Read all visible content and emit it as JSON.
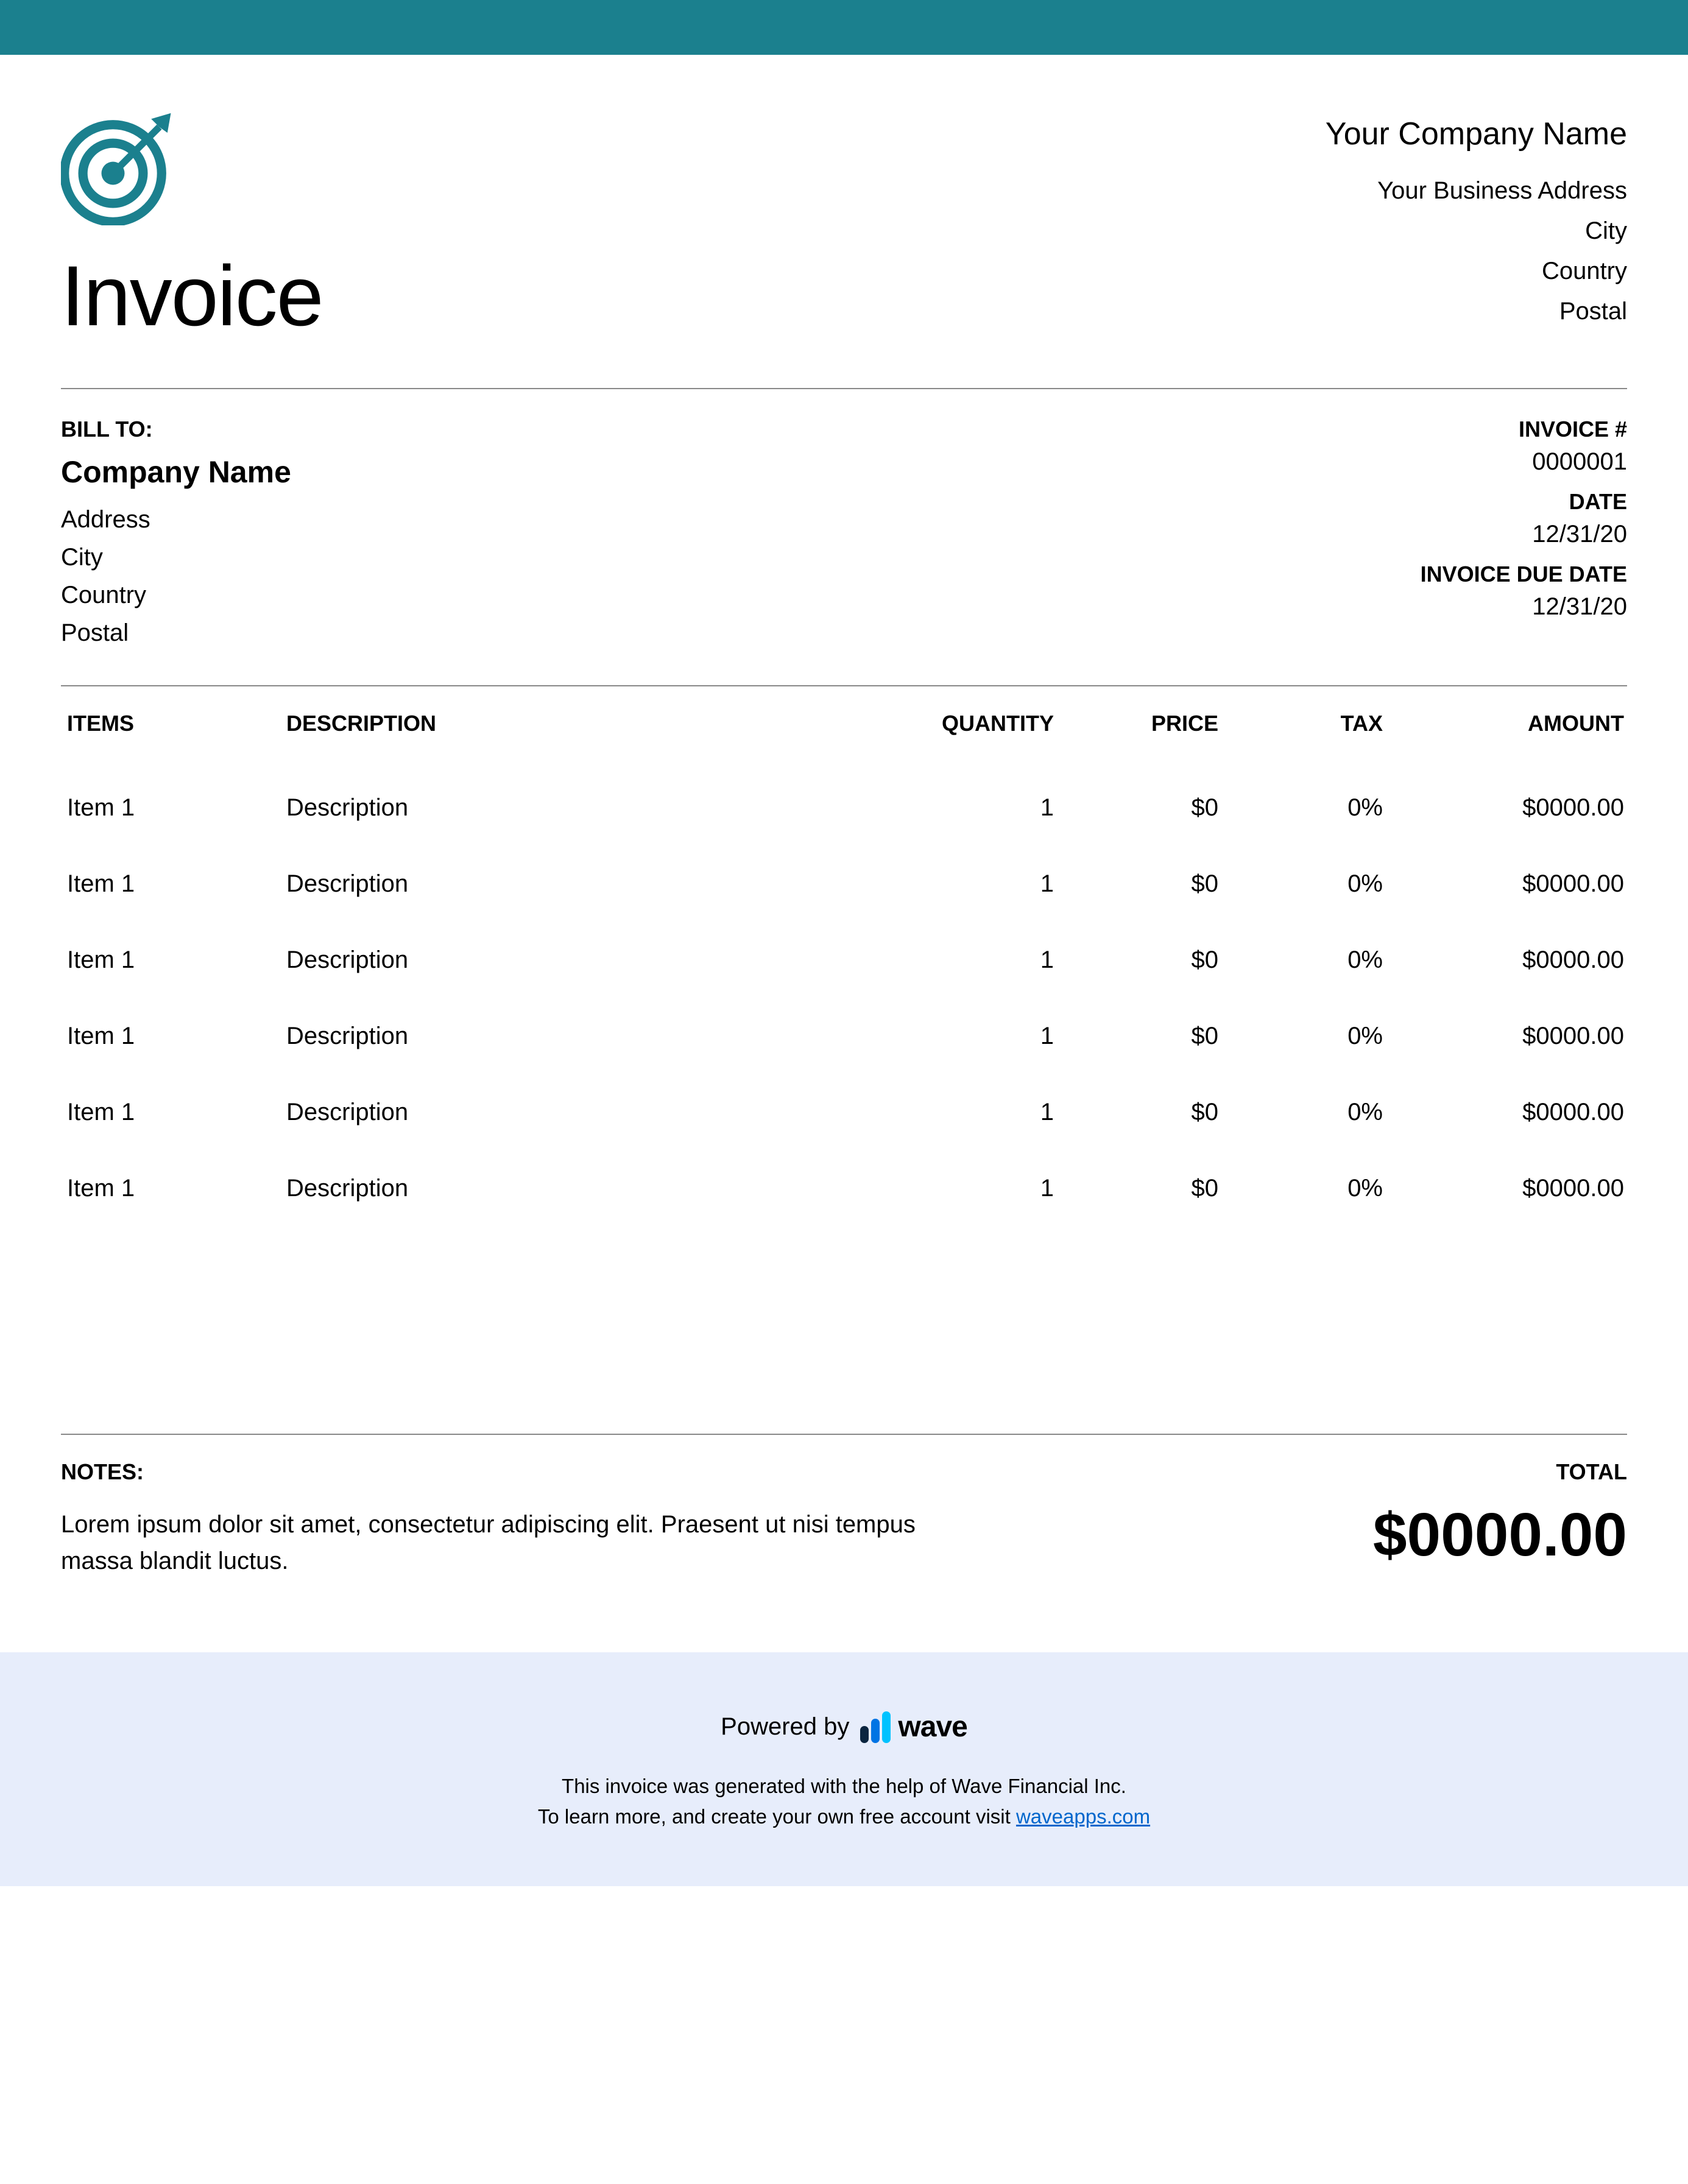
{
  "colors": {
    "top_bar": "#1b808e",
    "logo": "#1b808e",
    "footer_bg": "#e7edfb",
    "wave_bar1": "#0a2540",
    "wave_bar2": "#0074e4",
    "wave_bar3": "#00c2ff",
    "link": "#0066cc"
  },
  "header": {
    "title": "Invoice",
    "company_name": "Your Company Name",
    "address_line": "Your Business Address",
    "city": "City",
    "country": "Country",
    "postal": "Postal"
  },
  "bill_to": {
    "label": "BILL TO:",
    "company": "Company Name",
    "address": "Address",
    "city": "City",
    "country": "Country",
    "postal": "Postal"
  },
  "invoice_meta": {
    "number_label": "INVOICE #",
    "number": "0000001",
    "date_label": "DATE",
    "date": "12/31/20",
    "due_label": "INVOICE DUE DATE",
    "due": "12/31/20"
  },
  "table": {
    "headers": {
      "items": "ITEMS",
      "description": "DESCRIPTION",
      "quantity": "QUANTITY",
      "price": "PRICE",
      "tax": "TAX",
      "amount": "AMOUNT"
    },
    "rows": [
      {
        "item": "Item 1",
        "desc": "Description",
        "qty": "1",
        "price": "$0",
        "tax": "0%",
        "amount": "$0000.00"
      },
      {
        "item": "Item 1",
        "desc": "Description",
        "qty": "1",
        "price": "$0",
        "tax": "0%",
        "amount": "$0000.00"
      },
      {
        "item": "Item 1",
        "desc": "Description",
        "qty": "1",
        "price": "$0",
        "tax": "0%",
        "amount": "$0000.00"
      },
      {
        "item": "Item 1",
        "desc": "Description",
        "qty": "1",
        "price": "$0",
        "tax": "0%",
        "amount": "$0000.00"
      },
      {
        "item": "Item 1",
        "desc": "Description",
        "qty": "1",
        "price": "$0",
        "tax": "0%",
        "amount": "$0000.00"
      },
      {
        "item": "Item 1",
        "desc": "Description",
        "qty": "1",
        "price": "$0",
        "tax": "0%",
        "amount": "$0000.00"
      }
    ]
  },
  "notes": {
    "label": "NOTES:",
    "text": "Lorem ipsum dolor sit amet, consectetur adipiscing elit. Praesent ut nisi tempus massa blandit luctus."
  },
  "total": {
    "label": "TOTAL",
    "amount": "$0000.00"
  },
  "footer": {
    "powered_by": "Powered by",
    "brand": "wave",
    "line1": "This invoice was generated with the help of Wave Financial Inc.",
    "line2_prefix": "To learn more, and create your own free account visit ",
    "link_text": "waveapps.com"
  }
}
